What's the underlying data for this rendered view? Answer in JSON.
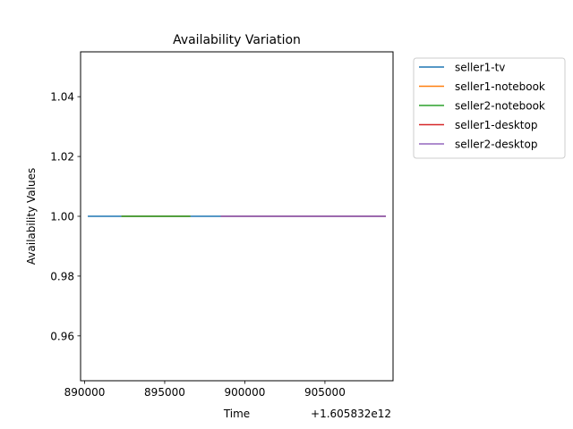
{
  "chart_data": {
    "type": "line",
    "title": "Availability Variation",
    "xlabel": "Time",
    "ylabel": "Availability Values",
    "x_offset_label": "+1.605832e12",
    "xlim": [
      889750,
      909250
    ],
    "ylim": [
      0.945,
      1.055
    ],
    "xticks": [
      {
        "value": 890000,
        "label": "890000"
      },
      {
        "value": 895000,
        "label": "895000"
      },
      {
        "value": 900000,
        "label": "900000"
      },
      {
        "value": 905000,
        "label": "905000"
      }
    ],
    "yticks": [
      {
        "value": 0.96,
        "label": "0.96"
      },
      {
        "value": 0.98,
        "label": "0.98"
      },
      {
        "value": 1.0,
        "label": "1.00"
      },
      {
        "value": 1.02,
        "label": "1.02"
      },
      {
        "value": 1.04,
        "label": "1.04"
      }
    ],
    "grid": false,
    "legend_placement": "outside-top-right",
    "series": [
      {
        "name": "seller1-tv",
        "color": "#1f77b4",
        "x": [
          890200,
          908800
        ],
        "y": [
          1.0,
          1.0
        ]
      },
      {
        "name": "seller1-notebook",
        "color": "#ff7f0e",
        "x": [
          892300,
          896600
        ],
        "y": [
          1.0,
          1.0
        ]
      },
      {
        "name": "seller2-notebook",
        "color": "#2ca02c",
        "x": [
          892300,
          896600
        ],
        "y": [
          1.0,
          1.0
        ]
      },
      {
        "name": "seller1-desktop",
        "color": "#d62728",
        "x": [
          898500,
          908800
        ],
        "y": [
          1.0,
          1.0
        ]
      },
      {
        "name": "seller2-desktop",
        "color": "#9467bd",
        "x": [
          898500,
          908800
        ],
        "y": [
          1.0,
          1.0
        ]
      }
    ]
  }
}
